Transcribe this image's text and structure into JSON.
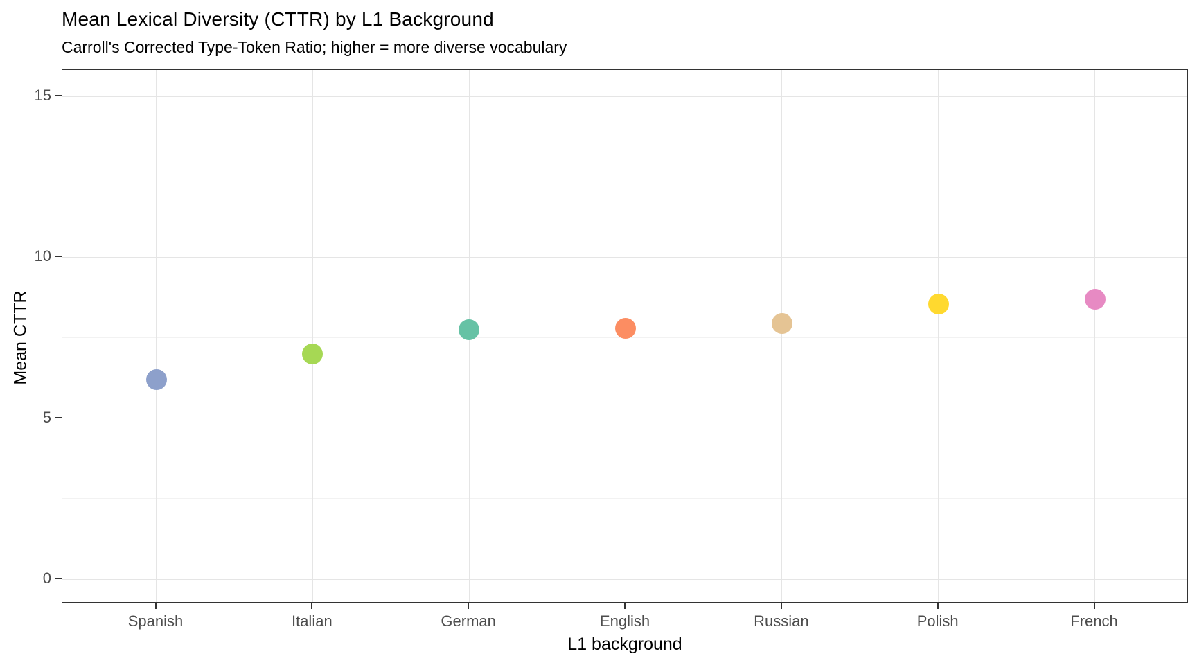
{
  "header": {
    "title": "Mean Lexical Diversity (CTTR) by L1 Background",
    "subtitle": "Carroll's Corrected Type-Token Ratio; higher = more diverse vocabulary"
  },
  "chart_data": {
    "type": "scatter",
    "title": "Mean Lexical Diversity (CTTR) by L1 Background",
    "subtitle": "Carroll's Corrected Type-Token Ratio; higher = more diverse vocabulary",
    "categories": [
      "Spanish",
      "Italian",
      "German",
      "English",
      "Russian",
      "Polish",
      "French"
    ],
    "values": [
      6.2,
      7.0,
      7.75,
      7.8,
      7.95,
      8.55,
      8.7
    ],
    "point_colors": [
      "#8da0cb",
      "#a6d854",
      "#66c2a5",
      "#fc8d62",
      "#e5c494",
      "#ffd92f",
      "#e78ac3"
    ],
    "palette": "Set2",
    "xlabel": "L1 background",
    "ylabel": "Mean CTTR",
    "ylim": [
      -0.75,
      15.82
    ],
    "y_major_ticks": [
      0,
      5,
      10,
      15
    ],
    "y_minor_ticks": [
      2.5,
      7.5,
      12.5
    ],
    "grid": true,
    "legend_position": "none"
  },
  "colors": {
    "background": "#ffffff",
    "panel_border": "#333333",
    "major_grid": "#e5e5e5",
    "minor_grid": "#f2f2f2",
    "tick_mark": "#333333",
    "tick_label": "#4d4d4d",
    "text": "#000000"
  }
}
